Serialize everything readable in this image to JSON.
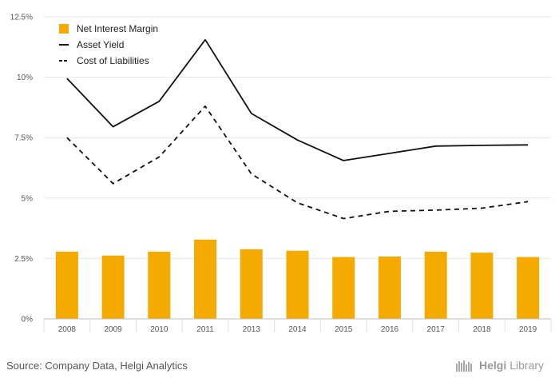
{
  "chart_data": {
    "type": "bar",
    "categories": [
      "2008",
      "2009",
      "2010",
      "2011",
      "2013",
      "2014",
      "2015",
      "2016",
      "2017",
      "2018",
      "2019"
    ],
    "series": [
      {
        "name": "Net Interest Margin",
        "type": "bar",
        "color": "#f5aa00",
        "values": [
          2.78,
          2.62,
          2.78,
          3.28,
          2.88,
          2.82,
          2.56,
          2.58,
          2.78,
          2.74,
          2.56
        ]
      },
      {
        "name": "Asset Yield",
        "type": "line",
        "style": "solid",
        "color": "#111111",
        "values": [
          9.95,
          7.95,
          9.0,
          11.55,
          8.5,
          7.4,
          6.55,
          6.85,
          7.15,
          7.18,
          7.2
        ]
      },
      {
        "name": "Cost of Liabilities",
        "type": "line",
        "style": "dashed",
        "color": "#111111",
        "values": [
          7.5,
          5.6,
          6.7,
          8.8,
          6.0,
          4.8,
          4.15,
          4.45,
          4.5,
          4.58,
          4.85
        ]
      }
    ],
    "yticks": [
      "0%",
      "2.5%",
      "5%",
      "7.5%",
      "10%",
      "12.5%"
    ],
    "ylim": [
      0,
      12.5
    ],
    "grid": true,
    "legend": "top-left"
  },
  "footer": {
    "source": "Source: Company Data, Helgi Analytics",
    "brand_a": "Helgi",
    "brand_b": "Library"
  }
}
